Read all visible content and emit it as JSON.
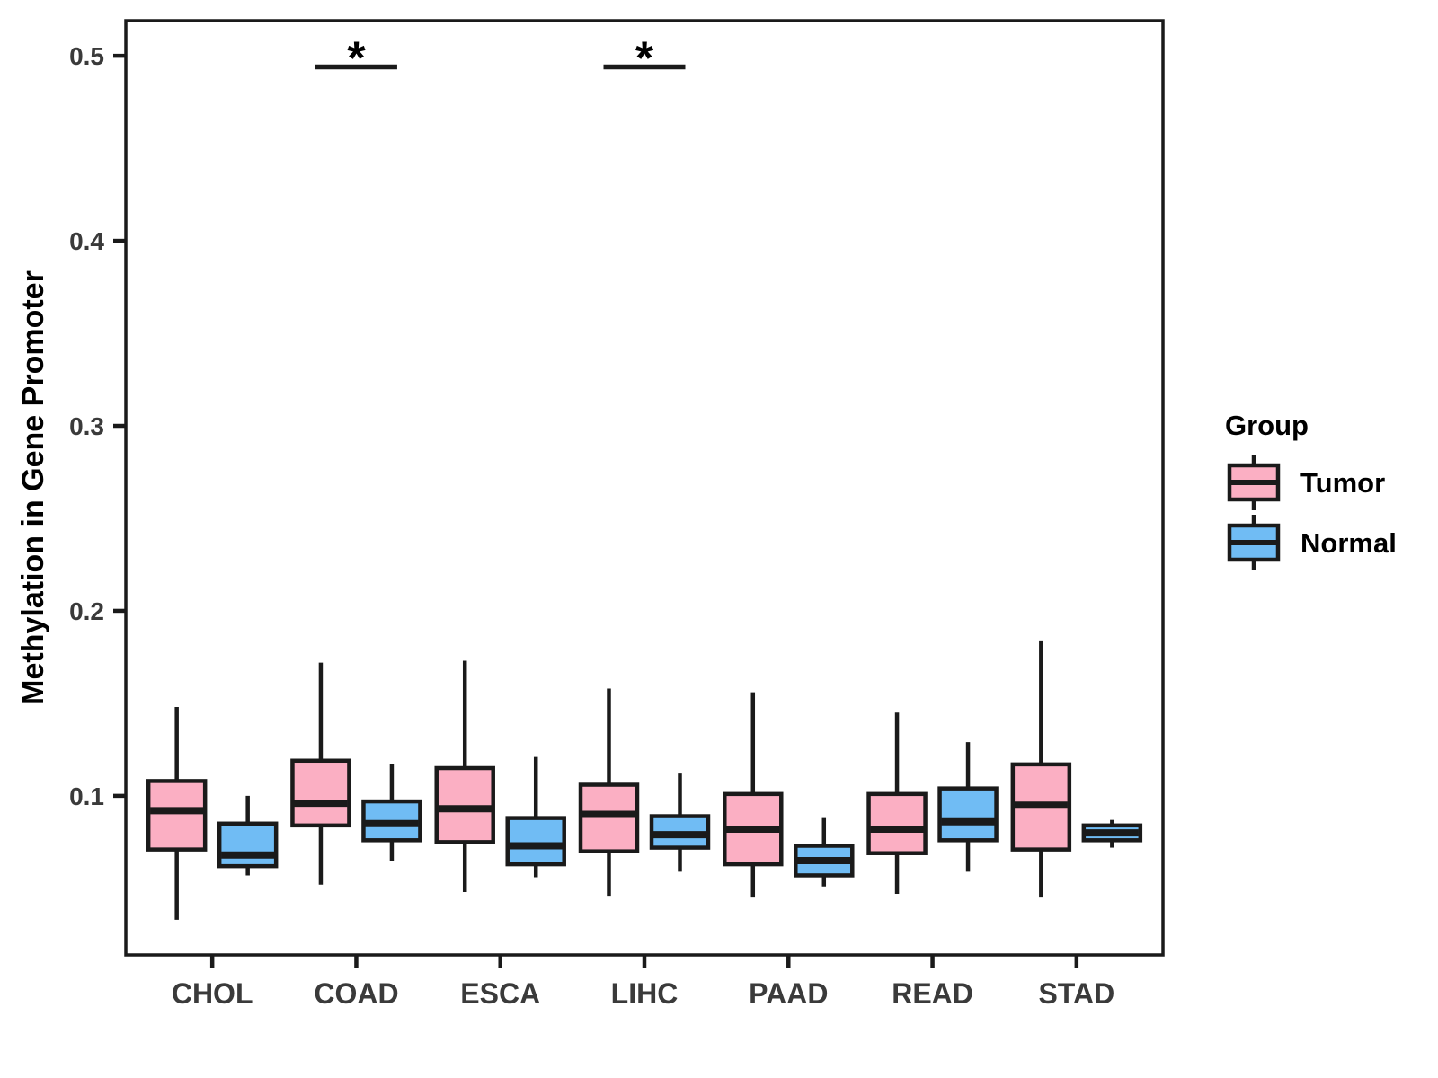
{
  "figure": {
    "background": "#FFFFFF"
  },
  "chart_data": {
    "type": "boxplot",
    "title": "",
    "xlabel": "",
    "ylabel": "Methylation in Gene Promoter",
    "categories": [
      "CHOL",
      "COAD",
      "ESCA",
      "LIHC",
      "PAAD",
      "READ",
      "STAD"
    ],
    "yticks": [
      0.1,
      0.2,
      0.3,
      0.4,
      0.5
    ],
    "ytick_labels": [
      "0.1",
      "0.2",
      "0.3",
      "0.4",
      "0.5"
    ],
    "ylim": [
      0.014,
      0.519
    ],
    "grid": false,
    "panel_border": true,
    "line_color": "#1A1A1A",
    "tick_label_color": "#3A3A3A",
    "text_color": "#000000",
    "legend": {
      "title": "Group",
      "position": "right"
    },
    "groups": [
      {
        "name": "Tumor",
        "color": "#FBAFC3",
        "boxes": [
          {
            "category": "CHOL",
            "whisker_low": 0.033,
            "q1": 0.071,
            "median": 0.092,
            "q3": 0.108,
            "whisker_high": 0.148
          },
          {
            "category": "COAD",
            "whisker_low": 0.052,
            "q1": 0.084,
            "median": 0.096,
            "q3": 0.119,
            "whisker_high": 0.172
          },
          {
            "category": "ESCA",
            "whisker_low": 0.048,
            "q1": 0.075,
            "median": 0.093,
            "q3": 0.115,
            "whisker_high": 0.173
          },
          {
            "category": "LIHC",
            "whisker_low": 0.046,
            "q1": 0.07,
            "median": 0.09,
            "q3": 0.106,
            "whisker_high": 0.158
          },
          {
            "category": "PAAD",
            "whisker_low": 0.045,
            "q1": 0.063,
            "median": 0.082,
            "q3": 0.101,
            "whisker_high": 0.156
          },
          {
            "category": "READ",
            "whisker_low": 0.047,
            "q1": 0.069,
            "median": 0.082,
            "q3": 0.101,
            "whisker_high": 0.145
          },
          {
            "category": "STAD",
            "whisker_low": 0.045,
            "q1": 0.071,
            "median": 0.095,
            "q3": 0.117,
            "whisker_high": 0.184
          }
        ]
      },
      {
        "name": "Normal",
        "color": "#70BCF4",
        "boxes": [
          {
            "category": "CHOL",
            "whisker_low": 0.057,
            "q1": 0.062,
            "median": 0.068,
            "q3": 0.085,
            "whisker_high": 0.1
          },
          {
            "category": "COAD",
            "whisker_low": 0.065,
            "q1": 0.076,
            "median": 0.085,
            "q3": 0.097,
            "whisker_high": 0.117
          },
          {
            "category": "ESCA",
            "whisker_low": 0.056,
            "q1": 0.063,
            "median": 0.073,
            "q3": 0.088,
            "whisker_high": 0.121
          },
          {
            "category": "LIHC",
            "whisker_low": 0.059,
            "q1": 0.072,
            "median": 0.079,
            "q3": 0.089,
            "whisker_high": 0.112
          },
          {
            "category": "PAAD",
            "whisker_low": 0.051,
            "q1": 0.057,
            "median": 0.065,
            "q3": 0.073,
            "whisker_high": 0.088
          },
          {
            "category": "READ",
            "whisker_low": 0.059,
            "q1": 0.076,
            "median": 0.086,
            "q3": 0.104,
            "whisker_high": 0.129
          },
          {
            "category": "STAD",
            "whisker_low": 0.072,
            "q1": 0.076,
            "median": 0.08,
            "q3": 0.084,
            "whisker_high": 0.087
          }
        ]
      }
    ],
    "significance": [
      {
        "category": "COAD",
        "label": "*",
        "y": 0.494
      },
      {
        "category": "LIHC",
        "label": "*",
        "y": 0.494
      }
    ]
  }
}
